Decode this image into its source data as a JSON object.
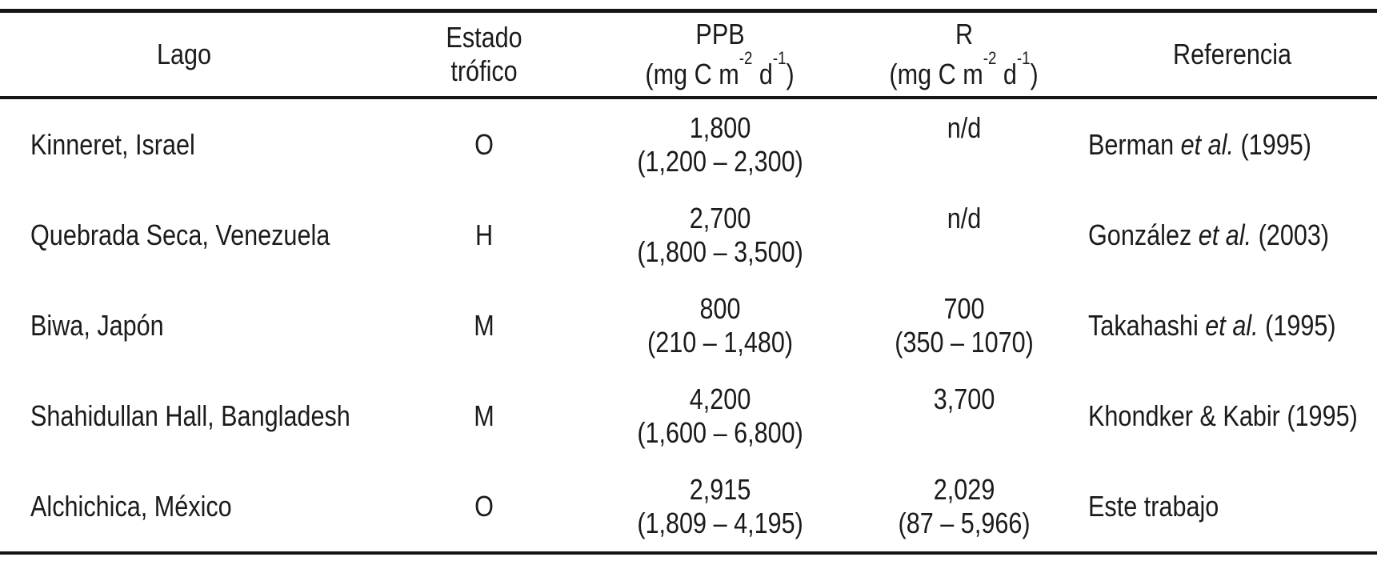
{
  "table": {
    "header": {
      "lago": "Lago",
      "estado_line1": "Estado",
      "estado_line2": "trófico",
      "ppb_title": "PPB",
      "r_title": "R",
      "unit_pre": "(mg C m",
      "unit_sup1": "-2",
      "unit_mid": " d",
      "unit_sup2": "-1",
      "unit_post": ")",
      "referencia": "Referencia"
    },
    "rows": [
      {
        "lago": "Kinneret, Israel",
        "estado": "O",
        "ppb_value": "1,800",
        "ppb_range": "(1,200 – 2,300)",
        "r_value": "n/d",
        "r_range": "",
        "ref_pre": "Berman ",
        "ref_italic": "et al.",
        "ref_post": " (1995)"
      },
      {
        "lago": "Quebrada Seca, Venezuela",
        "estado": "H",
        "ppb_value": "2,700",
        "ppb_range": "(1,800 – 3,500)",
        "r_value": "n/d",
        "r_range": "",
        "ref_pre": "González ",
        "ref_italic": "et al.",
        "ref_post": " (2003)"
      },
      {
        "lago": "Biwa, Japón",
        "estado": "M",
        "ppb_value": "800",
        "ppb_range": "(210 – 1,480)",
        "r_value": "700",
        "r_range": "(350 – 1070)",
        "ref_pre": "Takahashi ",
        "ref_italic": "et al.",
        "ref_post": " (1995)"
      },
      {
        "lago": "Shahidullan Hall, Bangladesh",
        "estado": "M",
        "ppb_value": "4,200",
        "ppb_range": "(1,600 – 6,800)",
        "r_value": "3,700",
        "r_range": "",
        "ref_pre": "Khondker & Kabir (1995)",
        "ref_italic": "",
        "ref_post": ""
      },
      {
        "lago": "Alchichica, México",
        "estado": "O",
        "ppb_value": "2,915",
        "ppb_range": "(1,809 – 4,195)",
        "r_value": "2,029",
        "r_range": "(87 – 5,966)",
        "ref_pre": "Este trabajo",
        "ref_italic": "",
        "ref_post": ""
      }
    ]
  }
}
